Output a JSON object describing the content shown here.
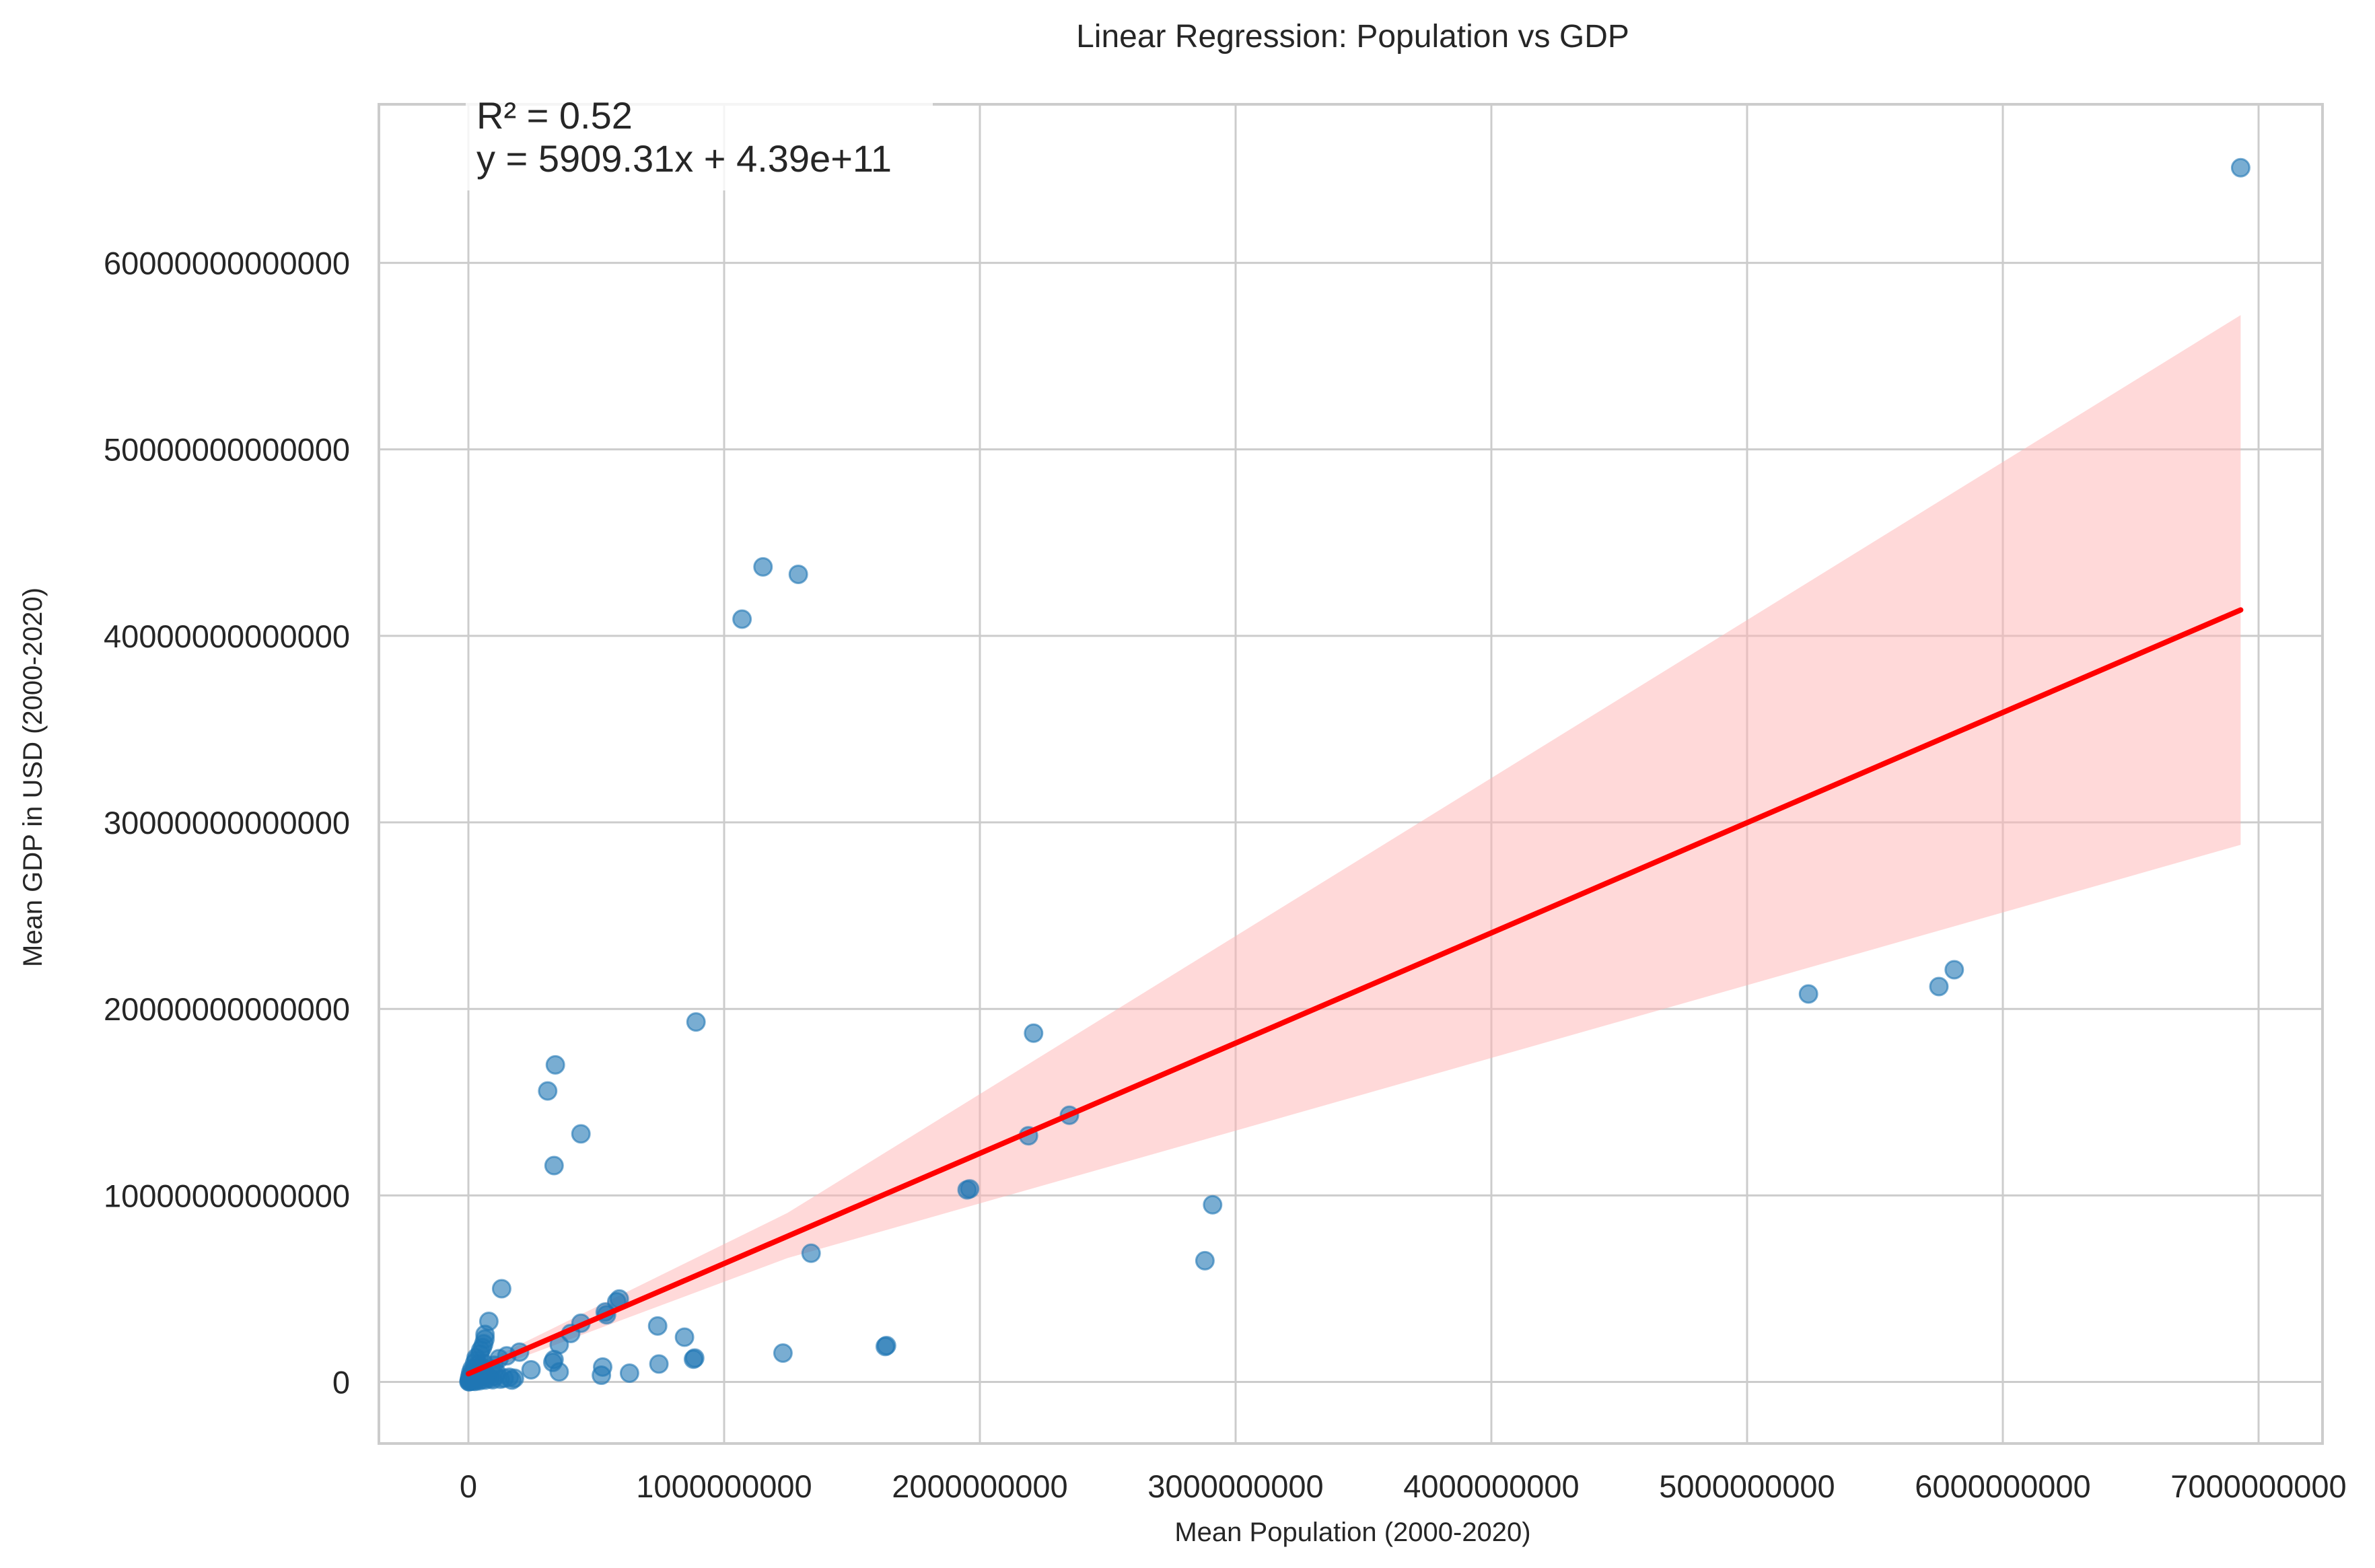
{
  "chart_data": {
    "type": "scatter",
    "title": "Linear Regression: Population vs GDP",
    "xlabel": "Mean Population (2000-2020)",
    "ylabel": "Mean GDP in USD (2000-2020)",
    "xlim": [
      -350000000,
      7250000000
    ],
    "ylim": [
      -3300000000000,
      68500000000000
    ],
    "grid": true,
    "x_ticks": [
      0,
      1000000000,
      2000000000,
      3000000000,
      4000000000,
      5000000000,
      6000000000,
      7000000000
    ],
    "x_tick_labels": [
      "0",
      "1000000000",
      "2000000000",
      "3000000000",
      "4000000000",
      "5000000000",
      "6000000000",
      "7000000000"
    ],
    "y_ticks": [
      0,
      10000000000000,
      20000000000000,
      30000000000000,
      40000000000000,
      50000000000000,
      60000000000000
    ],
    "y_tick_labels": [
      "0",
      "10000000000000",
      "20000000000000",
      "30000000000000",
      "40000000000000",
      "50000000000000",
      "60000000000000"
    ],
    "annotation": {
      "r2_text": "R² = 0.52",
      "equation_text": "y = 5909.31x + 4.39e+11",
      "placement": "top-left"
    },
    "regression": {
      "slope": 5909.31,
      "intercept": 439000000000,
      "r2": 0.52,
      "x_range": [
        0,
        6930000000
      ],
      "ci_band": {
        "x": [
          0,
          6930000000
        ],
        "lower_at_end": 28800000000000,
        "upper_at_end": 57200000000000,
        "lower_at_start": 250000000000,
        "upper_at_start": 650000000000
      },
      "line_color": "#ff0000",
      "band_color": "#ffb3b3"
    },
    "point_color": "#1f77b4",
    "series": [
      {
        "name": "countries",
        "points": [
          [
            6930000000,
            65100000000000
          ],
          [
            1152000000,
            43700000000000
          ],
          [
            1290000000,
            43300000000000
          ],
          [
            1070000000,
            40900000000000
          ],
          [
            5810000000,
            22100000000000
          ],
          [
            5750000000,
            21200000000000
          ],
          [
            5240000000,
            20800000000000
          ],
          [
            890000000,
            19300000000000
          ],
          [
            2210000000,
            18700000000000
          ],
          [
            340000000,
            17000000000000
          ],
          [
            310000000,
            15600000000000
          ],
          [
            2350000000,
            14300000000000
          ],
          [
            440000000,
            13300000000000
          ],
          [
            2190000000,
            13200000000000
          ],
          [
            335000000,
            11600000000000
          ],
          [
            1950000000,
            10300000000000
          ],
          [
            1960000000,
            10350000000000
          ],
          [
            2910000000,
            9500000000000
          ],
          [
            1340000000,
            6900000000000
          ],
          [
            2880000000,
            6500000000000
          ],
          [
            130000000,
            5000000000000
          ],
          [
            590000000,
            4450000000000
          ],
          [
            580000000,
            4300000000000
          ],
          [
            535000000,
            3750000000000
          ],
          [
            540000000,
            3600000000000
          ],
          [
            80000000,
            3250000000000
          ],
          [
            440000000,
            3150000000000
          ],
          [
            740000000,
            3000000000000
          ],
          [
            65000000,
            2550000000000
          ],
          [
            400000000,
            2600000000000
          ],
          [
            65000000,
            2300000000000
          ],
          [
            845000000,
            2400000000000
          ],
          [
            60000000,
            2050000000000
          ],
          [
            355000000,
            2000000000000
          ],
          [
            1635000000,
            1950000000000
          ],
          [
            1630000000,
            1900000000000
          ],
          [
            200000000,
            1600000000000
          ],
          [
            1230000000,
            1550000000000
          ],
          [
            45000000,
            1500000000000
          ],
          [
            150000000,
            1400000000000
          ],
          [
            30000000,
            1300000000000
          ],
          [
            885000000,
            1280000000000
          ],
          [
            880000000,
            1220000000000
          ],
          [
            120000000,
            1250000000000
          ],
          [
            335000000,
            1200000000000
          ],
          [
            330000000,
            1050000000000
          ],
          [
            745000000,
            960000000000
          ],
          [
            525000000,
            800000000000
          ],
          [
            245000000,
            650000000000
          ],
          [
            355000000,
            540000000000
          ],
          [
            630000000,
            470000000000
          ],
          [
            520000000,
            360000000000
          ],
          [
            160000000,
            250000000000
          ],
          [
            180000000,
            200000000000
          ],
          [
            100000000,
            900000000000
          ],
          [
            90000000,
            700000000000
          ],
          [
            110000000,
            500000000000
          ],
          [
            70000000,
            400000000000
          ],
          [
            60000000,
            1000000000000
          ],
          [
            50000000,
            800000000000
          ],
          [
            40000000,
            600000000000
          ],
          [
            35000000,
            900000000000
          ],
          [
            25000000,
            700000000000
          ],
          [
            20000000,
            500000000000
          ],
          [
            15000000,
            300000000000
          ],
          [
            10000000,
            200000000000
          ],
          [
            8000000,
            100000000000
          ],
          [
            5000000,
            50000000000
          ],
          [
            3000000,
            20000000000
          ],
          [
            2000000,
            10000000000
          ],
          [
            12000000,
            400000000000
          ],
          [
            18000000,
            250000000000
          ],
          [
            22000000,
            150000000000
          ],
          [
            28000000,
            350000000000
          ],
          [
            33000000,
            120000000000
          ],
          [
            38000000,
            200000000000
          ],
          [
            45000000,
            300000000000
          ],
          [
            55000000,
            150000000000
          ],
          [
            65000000,
            100000000000
          ],
          [
            75000000,
            250000000000
          ],
          [
            85000000,
            180000000000
          ],
          [
            95000000,
            120000000000
          ],
          [
            105000000,
            300000000000
          ],
          [
            125000000,
            150000000000
          ],
          [
            140000000,
            200000000000
          ],
          [
            170000000,
            100000000000
          ],
          [
            6000000,
            300000000000
          ],
          [
            9000000,
            500000000000
          ],
          [
            14000000,
            700000000000
          ],
          [
            24000000,
            1000000000000
          ],
          [
            30000000,
            1150000000000
          ],
          [
            48000000,
            1700000000000
          ],
          [
            55000000,
            1850000000000
          ],
          [
            4000000,
            150000000000
          ],
          [
            7000000,
            80000000000
          ],
          [
            11000000,
            60000000000
          ],
          [
            16000000,
            40000000000
          ],
          [
            26000000,
            30000000000
          ],
          [
            42000000,
            60000000000
          ]
        ]
      }
    ]
  }
}
